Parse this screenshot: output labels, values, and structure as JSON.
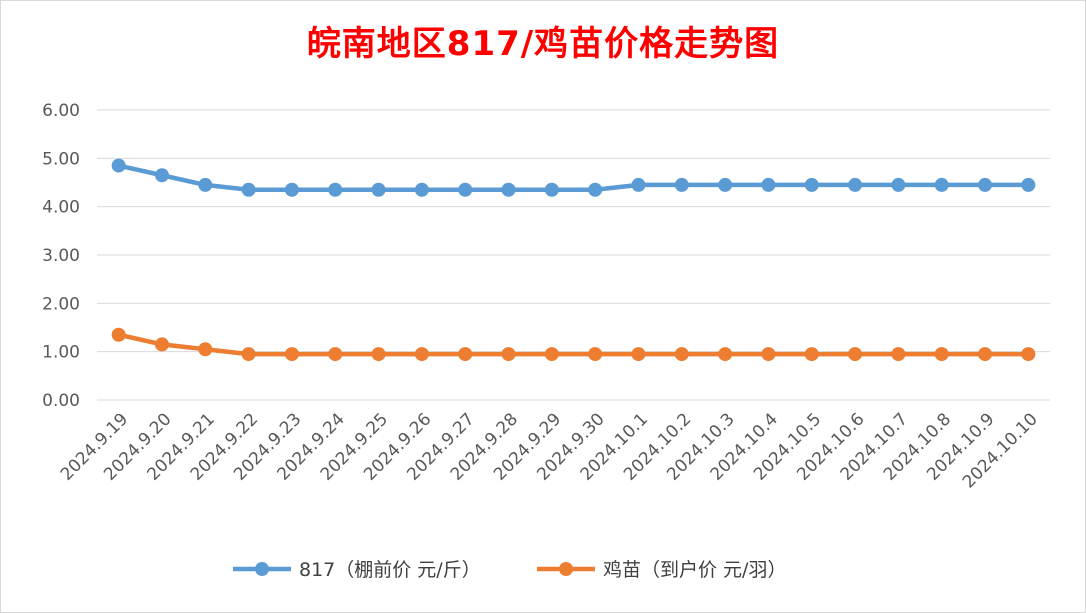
{
  "chart_data": {
    "type": "line",
    "title": "皖南地区817/鸡苗价格走势图",
    "categories": [
      "2024.9.19",
      "2024.9.20",
      "2024.9.21",
      "2024.9.22",
      "2024.9.23",
      "2024.9.24",
      "2024.9.25",
      "2024.9.26",
      "2024.9.27",
      "2024.9.28",
      "2024.9.29",
      "2024.9.30",
      "2024.10.1",
      "2024.10.2",
      "2024.10.3",
      "2024.10.4",
      "2024.10.5",
      "2024.10.6",
      "2024.10.7",
      "2024.10.8",
      "2024.10.9",
      "2024.10.10"
    ],
    "series": [
      {
        "name": "817（棚前价 元/斤）",
        "color": "#5b9bd5",
        "values": [
          4.85,
          4.65,
          4.45,
          4.35,
          4.35,
          4.35,
          4.35,
          4.35,
          4.35,
          4.35,
          4.35,
          4.35,
          4.45,
          4.45,
          4.45,
          4.45,
          4.45,
          4.45,
          4.45,
          4.45,
          4.45,
          4.45
        ]
      },
      {
        "name": "鸡苗（到户价 元/羽）",
        "color": "#ed7d31",
        "values": [
          1.35,
          1.15,
          1.05,
          0.95,
          0.95,
          0.95,
          0.95,
          0.95,
          0.95,
          0.95,
          0.95,
          0.95,
          0.95,
          0.95,
          0.95,
          0.95,
          0.95,
          0.95,
          0.95,
          0.95,
          0.95,
          0.95
        ]
      }
    ],
    "ylim": [
      0,
      6
    ],
    "yticks": [
      "0.00",
      "1.00",
      "2.00",
      "3.00",
      "4.00",
      "5.00",
      "6.00"
    ],
    "grid": true,
    "legend": "bottom"
  }
}
